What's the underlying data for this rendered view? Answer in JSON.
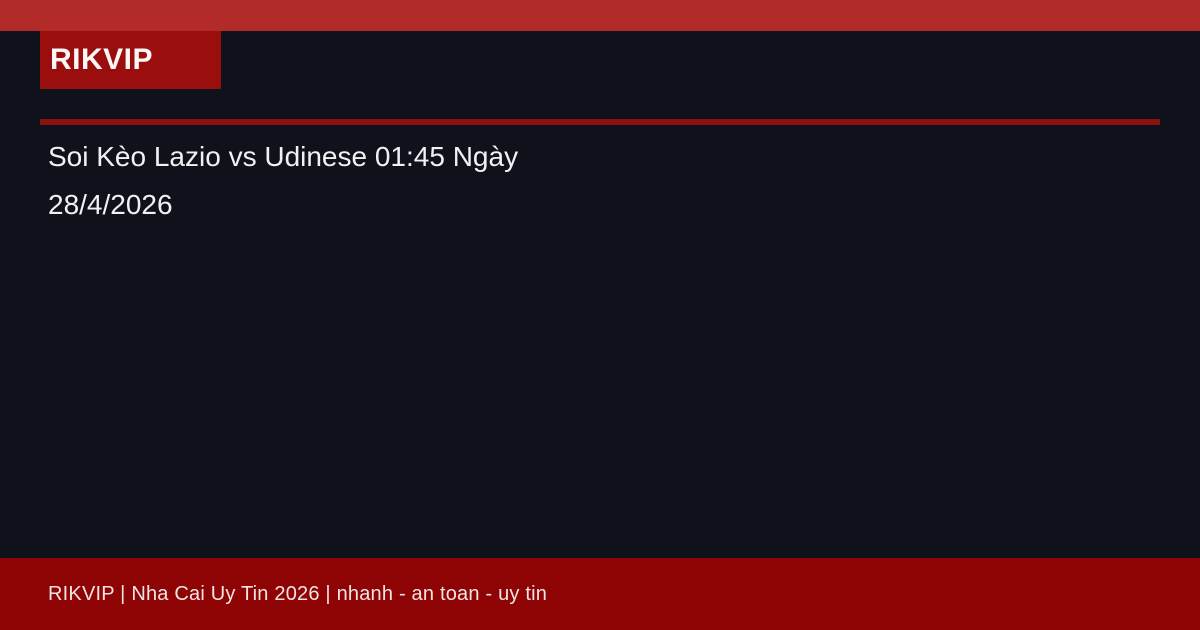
{
  "page": {
    "background_color": "#10121b"
  },
  "header": {
    "topbar_color": "#b32b29",
    "logo": {
      "label": "RIKVIP",
      "box_color": "#9b0e0e",
      "text_color": "#fdf7f7"
    },
    "divider_color": "#8c1212"
  },
  "main": {
    "title_line1": "Soi Kèo Lazio vs Udinese 01:45 Ngày",
    "title_line2": "28/4/2026",
    "text_color": "#f1f1f3"
  },
  "footer": {
    "text": "RIKVIP | Nha Cai Uy Tin 2026 | nhanh - an toan - uy tin",
    "bar_color": "#8e0303",
    "text_color": "#f3e4e4"
  }
}
